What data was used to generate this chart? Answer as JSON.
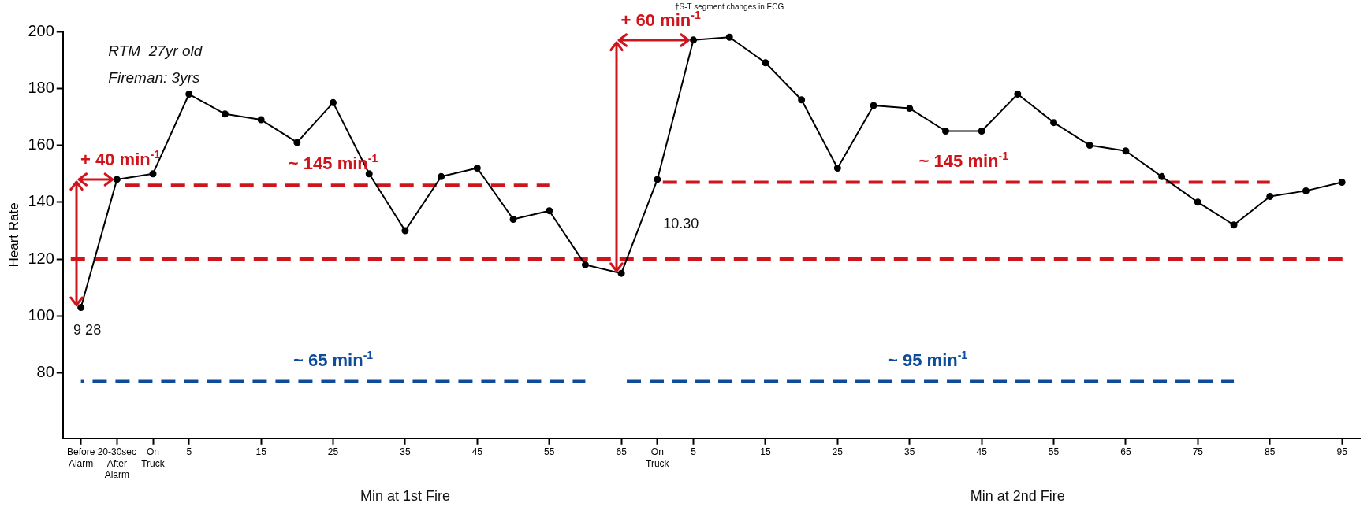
{
  "chart_data": {
    "type": "line",
    "ylabel": "Heart Rate",
    "categories": [
      "Before Alarm",
      "20-30sec After Alarm",
      "On Truck",
      "5",
      null,
      "15",
      null,
      "25",
      null,
      "35",
      null,
      "45",
      null,
      "55",
      null,
      "65",
      "On Truck",
      "5",
      null,
      "15",
      null,
      "25",
      null,
      "35",
      null,
      "45",
      null,
      "55",
      null,
      "65",
      null,
      "75",
      null,
      "85",
      null,
      "95"
    ],
    "series": [
      {
        "color": "#000000",
        "values": [
          103,
          148,
          150,
          178,
          171,
          169,
          161,
          175,
          150,
          130,
          149,
          152,
          134,
          137,
          118,
          115,
          148,
          197,
          198,
          189,
          176,
          152,
          174,
          173,
          165,
          165,
          178,
          168,
          160,
          158,
          149,
          140,
          132,
          142,
          144,
          147
        ]
      },
      {
        "name": "~ 145 min$^{-1}$",
        "type": "line",
        "marker": "none",
        "line_style": "dashed",
        "color": "#d0141c",
        "values": [
          null,
          146,
          146,
          146,
          146,
          146,
          146,
          146,
          146,
          146,
          146,
          146,
          146,
          146,
          null,
          null,
          null,
          null,
          null,
          null,
          null,
          null,
          null,
          null,
          null,
          null,
          null,
          null,
          null,
          null,
          null,
          null,
          null,
          null,
          null,
          null
        ]
      },
      {
        "name": "~ 145 min$^{-1}$",
        "type": "line",
        "marker": "none",
        "line_style": "dashed",
        "color": "#d0141c",
        "values": [
          null,
          null,
          null,
          null,
          null,
          null,
          null,
          null,
          null,
          null,
          null,
          null,
          null,
          null,
          null,
          null,
          147,
          147,
          147,
          147,
          147,
          147,
          147,
          147,
          147,
          147,
          147,
          147,
          147,
          147,
          147,
          147,
          147,
          147,
          null,
          null
        ]
      },
      {
        "name": "~ 65 min$^{-1}$",
        "type": "line",
        "marker": "none",
        "line_style": "dashed",
        "color": "#0e4c9a",
        "values": [
          77,
          77,
          77,
          77,
          77,
          77,
          77,
          77,
          77,
          77,
          77,
          77,
          77,
          77,
          77,
          null,
          null,
          null,
          null,
          null,
          null,
          null,
          null,
          null,
          null,
          null,
          null,
          null,
          null,
          null,
          null,
          null,
          null,
          null,
          null,
          null
        ]
      },
      {
        "name": "~ 95 min$^{-1}$",
        "type": "line",
        "marker": "none",
        "line_style": "dashed",
        "color": "#0e4c9a",
        "values": [
          null,
          null,
          null,
          null,
          null,
          null,
          null,
          null,
          null,
          null,
          null,
          null,
          null,
          null,
          null,
          77,
          77,
          77,
          77,
          77,
          77,
          77,
          77,
          77,
          77,
          77,
          77,
          77,
          77,
          77,
          77,
          77,
          77,
          null,
          null,
          null
        ]
      }
    ],
    "ylim": [
      57,
      200
    ],
    "yticks": [
      80,
      100,
      120,
      140,
      160,
      180,
      200
    ],
    "grid": false,
    "marker": "circle",
    "ref_lines": [
      {
        "axis": "y",
        "value": 120,
        "color": "#d0141c",
        "line_style": "dashed"
      }
    ],
    "annotations": [
      "RTM  27yr old",
      "Fireman: 3yrs",
      "9 28",
      "10.30",
      "†S-T segment changes in ECG",
      {
        "text": "+ 40 min$^{-1}$",
        "x": "Before Alarm",
        "y": 103
      },
      {
        "text": "+ 60 min$^{-1}$",
        "x": "65",
        "y": 115
      },
      "Min at 1st Fire",
      "Min at 2nd Fire"
    ]
  }
}
